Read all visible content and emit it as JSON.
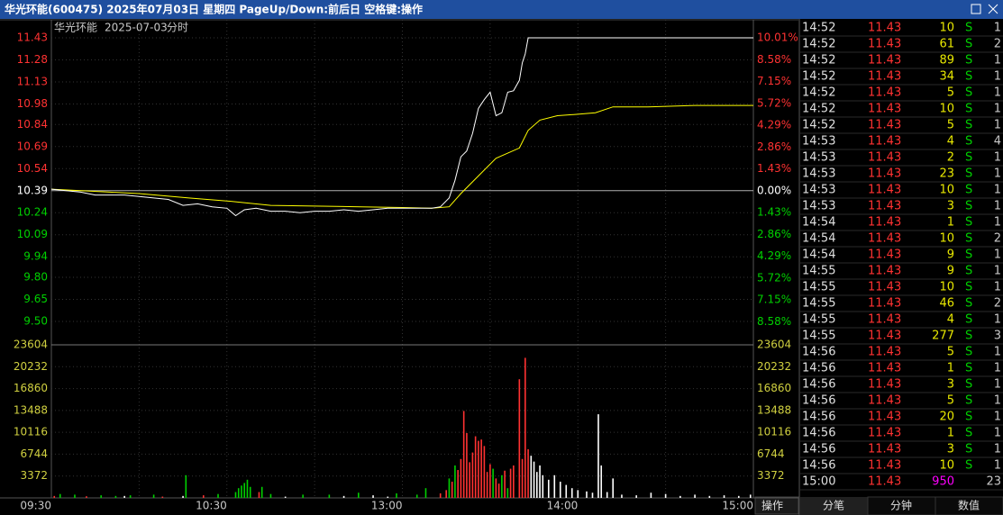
{
  "title_bar": "华光环能(600475) 2025年07月03日 星期四 PageUp/Down:前后日 空格键:操作",
  "chart_data": {
    "type": "intraday",
    "name": "华光环能",
    "date": "2025-07-03",
    "mode": "分时",
    "prev_close": 10.39,
    "colors": {
      "up": "#ff3232",
      "down": "#00d000",
      "flat": "#ffffff"
    },
    "xlim": [
      0,
      240
    ],
    "xticks": [
      {
        "value": 0,
        "label": "09:30"
      },
      {
        "value": 60,
        "label": "10:30"
      },
      {
        "value": 120,
        "label": "13:00"
      },
      {
        "value": 180,
        "label": "14:00"
      },
      {
        "value": 240,
        "label": "15:00"
      }
    ],
    "xgrid": [
      30,
      60,
      90,
      120,
      150,
      180,
      210
    ],
    "ylim": [
      9.35,
      11.43
    ],
    "yticks": [
      11.43,
      11.28,
      11.13,
      10.98,
      10.84,
      10.69,
      10.54,
      10.39,
      10.24,
      10.09,
      9.94,
      {
        "value": 9.8,
        "label": "9.80"
      },
      9.65,
      {
        "value": 9.5,
        "label": "9.50"
      }
    ],
    "y2lim": [
      -10.01,
      10.01
    ],
    "y2ticks": [
      {
        "value": 10.01,
        "label": "10.01%"
      },
      {
        "value": 8.58,
        "label": "8.58%"
      },
      {
        "value": 7.15,
        "label": "7.15%"
      },
      {
        "value": 5.72,
        "label": "5.72%"
      },
      {
        "value": 4.29,
        "label": "4.29%"
      },
      {
        "value": 2.86,
        "label": "2.86%"
      },
      {
        "value": 1.43,
        "label": "1.43%"
      },
      {
        "value": 0,
        "label": "0.00%"
      },
      {
        "value": -1.43,
        "label": "1.43%"
      },
      {
        "value": -2.86,
        "label": "2.86%"
      },
      {
        "value": -4.29,
        "label": "4.29%"
      },
      {
        "value": -5.72,
        "label": "5.72%"
      },
      {
        "value": -7.15,
        "label": "7.15%"
      },
      {
        "value": -8.58,
        "label": "8.58%"
      }
    ],
    "price": {
      "color": "#ffffff",
      "x": [
        0,
        5,
        10,
        15,
        20,
        25,
        30,
        35,
        40,
        45,
        50,
        55,
        60,
        63,
        66,
        70,
        75,
        80,
        85,
        90,
        95,
        100,
        105,
        110,
        115,
        120,
        125,
        130,
        133,
        136,
        138,
        140,
        142,
        144,
        146,
        148,
        150,
        152,
        154,
        156,
        158,
        160,
        161,
        162,
        163,
        240
      ],
      "values": [
        10.4,
        10.39,
        10.38,
        10.36,
        10.36,
        10.36,
        10.35,
        10.34,
        10.33,
        10.29,
        10.3,
        10.28,
        10.27,
        10.22,
        10.26,
        10.27,
        10.25,
        10.25,
        10.24,
        10.25,
        10.25,
        10.26,
        10.25,
        10.26,
        10.27,
        10.27,
        10.27,
        10.27,
        10.28,
        10.34,
        10.46,
        10.62,
        10.66,
        10.78,
        10.95,
        11.01,
        11.06,
        10.9,
        10.92,
        11.06,
        11.07,
        11.14,
        11.26,
        11.32,
        11.43,
        11.43
      ]
    },
    "average": {
      "color": "#ffff00",
      "x": [
        0,
        10,
        20,
        30,
        47,
        60,
        75,
        90,
        106,
        120,
        130,
        136,
        140,
        146,
        152,
        160,
        163,
        167,
        173,
        180,
        186,
        192,
        204,
        220,
        240
      ],
      "values": [
        10.4,
        10.39,
        10.38,
        10.37,
        10.34,
        10.32,
        10.29,
        10.285,
        10.28,
        10.275,
        10.27,
        10.28,
        10.37,
        10.49,
        10.61,
        10.68,
        10.8,
        10.87,
        10.9,
        10.91,
        10.92,
        10.96,
        10.96,
        10.97,
        10.97
      ]
    },
    "volume": {
      "ylim": [
        0,
        23604
      ],
      "yticks": [
        3372,
        6744,
        10116,
        13488,
        16860,
        20232,
        23604
      ],
      "label_color": "#d0d040",
      "up": {
        "x": [
          1,
          12,
          38,
          52,
          71,
          133,
          135,
          137,
          139,
          140,
          141,
          142,
          143,
          144,
          145,
          146,
          147,
          148,
          149,
          150,
          152,
          153,
          155,
          157,
          158,
          160,
          161,
          162,
          163
        ],
        "values": [
          300,
          250,
          200,
          400,
          900,
          700,
          1200,
          2500,
          4300,
          6000,
          13400,
          10000,
          5500,
          7000,
          9500,
          8800,
          9000,
          8000,
          4000,
          5200,
          3000,
          2200,
          4200,
          4500,
          5000,
          18300,
          6000,
          21600,
          7500
        ]
      },
      "down": {
        "x": [
          3,
          8,
          17,
          22,
          27,
          35,
          46,
          57,
          63,
          64,
          65,
          66,
          67,
          68,
          72,
          75,
          86,
          95,
          105,
          118,
          125,
          128,
          136,
          138,
          151,
          154,
          156
        ],
        "values": [
          600,
          500,
          400,
          300,
          400,
          500,
          3500,
          600,
          900,
          1500,
          1900,
          2300,
          2800,
          1700,
          1700,
          600,
          500,
          500,
          800,
          700,
          500,
          1500,
          3000,
          5000,
          4500,
          3500,
          1500
        ]
      },
      "flat": {
        "x": [
          25,
          45,
          80,
          100,
          110,
          115,
          164,
          165,
          166,
          167,
          168,
          170,
          172,
          174,
          176,
          178,
          180,
          183,
          185,
          187,
          188,
          190,
          192,
          195,
          200,
          205,
          210,
          215,
          220,
          225,
          230,
          235,
          239
        ],
        "values": [
          300,
          300,
          200,
          300,
          400,
          200,
          6500,
          5600,
          4000,
          5000,
          3500,
          2800,
          3500,
          2500,
          2000,
          1500,
          1200,
          1000,
          800,
          12900,
          5000,
          900,
          3000,
          500,
          400,
          800,
          600,
          300,
          500,
          300,
          400,
          300,
          500
        ]
      }
    }
  },
  "button": "操作",
  "trades": {
    "time_color": "#e0e0e0",
    "price_color": "#ff3232",
    "volume_color": "#e8e800",
    "side_color": "#00d000",
    "rows": [
      {
        "time": "14:52",
        "price": 11.43,
        "volume": 10,
        "side": "S",
        "count": 1
      },
      {
        "time": "14:52",
        "price": 11.43,
        "volume": 61,
        "side": "S",
        "count": 2
      },
      {
        "time": "14:52",
        "price": 11.43,
        "volume": 89,
        "side": "S",
        "count": 1
      },
      {
        "time": "14:52",
        "price": 11.43,
        "volume": 34,
        "side": "S",
        "count": 1
      },
      {
        "time": "14:52",
        "price": 11.43,
        "volume": 5,
        "side": "S",
        "count": 1
      },
      {
        "time": "14:52",
        "price": 11.43,
        "volume": 10,
        "side": "S",
        "count": 1
      },
      {
        "time": "14:52",
        "price": 11.43,
        "volume": 5,
        "side": "S",
        "count": 1
      },
      {
        "time": "14:53",
        "price": 11.43,
        "volume": 4,
        "side": "S",
        "count": 4
      },
      {
        "time": "14:53",
        "price": 11.43,
        "volume": 2,
        "side": "S",
        "count": 1
      },
      {
        "time": "14:53",
        "price": 11.43,
        "volume": 23,
        "side": "S",
        "count": 1
      },
      {
        "time": "14:53",
        "price": 11.43,
        "volume": 10,
        "side": "S",
        "count": 1
      },
      {
        "time": "14:53",
        "price": 11.43,
        "volume": 3,
        "side": "S",
        "count": 1
      },
      {
        "time": "14:54",
        "price": 11.43,
        "volume": 1,
        "side": "S",
        "count": 1
      },
      {
        "time": "14:54",
        "price": 11.43,
        "volume": 10,
        "side": "S",
        "count": 2
      },
      {
        "time": "14:54",
        "price": 11.43,
        "volume": 9,
        "side": "S",
        "count": 1
      },
      {
        "time": "14:55",
        "price": 11.43,
        "volume": 9,
        "side": "S",
        "count": 1
      },
      {
        "time": "14:55",
        "price": 11.43,
        "volume": 10,
        "side": "S",
        "count": 1
      },
      {
        "time": "14:55",
        "price": 11.43,
        "volume": 46,
        "side": "S",
        "count": 2
      },
      {
        "time": "14:55",
        "price": 11.43,
        "volume": 4,
        "side": "S",
        "count": 1
      },
      {
        "time": "14:55",
        "price": 11.43,
        "volume": 277,
        "side": "S",
        "count": 3
      },
      {
        "time": "14:56",
        "price": 11.43,
        "volume": 5,
        "side": "S",
        "count": 1
      },
      {
        "time": "14:56",
        "price": 11.43,
        "volume": 1,
        "side": "S",
        "count": 1
      },
      {
        "time": "14:56",
        "price": 11.43,
        "volume": 3,
        "side": "S",
        "count": 1
      },
      {
        "time": "14:56",
        "price": 11.43,
        "volume": 5,
        "side": "S",
        "count": 1
      },
      {
        "time": "14:56",
        "price": 11.43,
        "volume": 20,
        "side": "S",
        "count": 1
      },
      {
        "time": "14:56",
        "price": 11.43,
        "volume": 1,
        "side": "S",
        "count": 1
      },
      {
        "time": "14:56",
        "price": 11.43,
        "volume": 3,
        "side": "S",
        "count": 1
      },
      {
        "time": "14:56",
        "price": 11.43,
        "volume": 10,
        "side": "S",
        "count": 1
      },
      {
        "time": "15:00",
        "price": 11.43,
        "volume": 950,
        "count": 23,
        "volume_color": "#ff00ff"
      }
    ]
  },
  "tabs": [
    "分笔",
    "分钟",
    "数值"
  ]
}
